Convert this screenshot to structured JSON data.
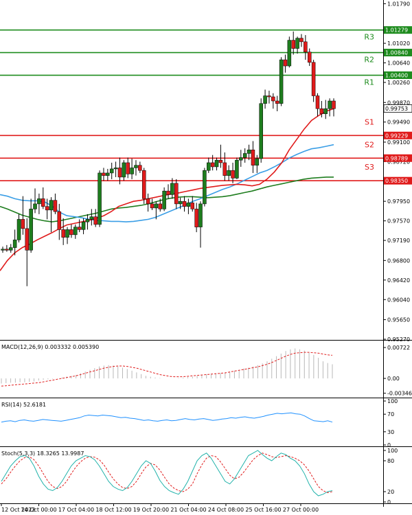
{
  "chart_data": {
    "type": "candlestick",
    "title": "",
    "main_axis": {
      "min": 0.9527,
      "max": 1.01835,
      "ticks": [
        "1.01790",
        "1.01279",
        "1.01020",
        "1.00840",
        "1.00640",
        "1.00400",
        "1.00260",
        "0.99870",
        "0.99753",
        "0.99490",
        "0.99229",
        "0.99100",
        "0.98789",
        "0.98720",
        "0.98350",
        "0.97950",
        "0.97570",
        "0.97190",
        "0.96800",
        "0.96420",
        "0.96040",
        "0.95650",
        "0.95270"
      ]
    },
    "levels": [
      {
        "name": "R3",
        "value": 1.01279,
        "label": "1.01279",
        "color": "#1e8c1e"
      },
      {
        "name": "R2",
        "value": 1.0084,
        "label": "1.00840",
        "color": "#1e8c1e"
      },
      {
        "name": "R1",
        "value": 1.004,
        "label": "1.00400",
        "color": "#1e8c1e"
      },
      {
        "name": "S1",
        "value": 0.99229,
        "label": "0.99229",
        "color": "#e01b1b"
      },
      {
        "name": "S2",
        "value": 0.98789,
        "label": "0.98789",
        "color": "#e01b1b"
      },
      {
        "name": "S3",
        "value": 0.9835,
        "label": "0.98350",
        "color": "#e01b1b"
      }
    ],
    "current_price": {
      "value": 0.99753,
      "label": "0.99753"
    },
    "x_labels": [
      "12 Oct 2022",
      "14 Oct 00:00",
      "17 Oct 04:00",
      "18 Oct 12:00",
      "19 Oct 20:00",
      "21 Oct 04:00",
      "24 Oct 08:00",
      "25 Oct 16:00",
      "27 Oct 00:00"
    ],
    "candles": [
      [
        0.97,
        0.9707,
        0.9695,
        0.9702
      ],
      [
        0.9702,
        0.971,
        0.9697,
        0.97
      ],
      [
        0.97,
        0.9712,
        0.9695,
        0.9705
      ],
      [
        0.9705,
        0.974,
        0.969,
        0.972
      ],
      [
        0.972,
        0.977,
        0.9715,
        0.976
      ],
      [
        0.976,
        0.9805,
        0.973,
        0.9742
      ],
      [
        0.9742,
        0.9762,
        0.963,
        0.97
      ],
      [
        0.97,
        0.98,
        0.9695,
        0.978
      ],
      [
        0.978,
        0.982,
        0.9772,
        0.979
      ],
      [
        0.979,
        0.981,
        0.977,
        0.98
      ],
      [
        0.98,
        0.9822,
        0.978,
        0.9785
      ],
      [
        0.9785,
        0.98,
        0.976,
        0.9778
      ],
      [
        0.9778,
        0.9803,
        0.9735,
        0.9797
      ],
      [
        0.9797,
        0.981,
        0.977,
        0.9775
      ],
      [
        0.9775,
        0.979,
        0.972,
        0.974
      ],
      [
        0.974,
        0.9762,
        0.971,
        0.9725
      ],
      [
        0.9725,
        0.9745,
        0.9712,
        0.974
      ],
      [
        0.974,
        0.975,
        0.9724,
        0.973
      ],
      [
        0.973,
        0.975,
        0.9722,
        0.9745
      ],
      [
        0.9745,
        0.976,
        0.9735,
        0.974
      ],
      [
        0.974,
        0.9762,
        0.9731,
        0.9755
      ],
      [
        0.9755,
        0.977,
        0.974,
        0.976
      ],
      [
        0.976,
        0.978,
        0.9748,
        0.9765
      ],
      [
        0.9765,
        0.978,
        0.9745,
        0.975
      ],
      [
        0.975,
        0.9855,
        0.9745,
        0.985
      ],
      [
        0.985,
        0.986,
        0.9835,
        0.9845
      ],
      [
        0.9845,
        0.9858,
        0.9835,
        0.985
      ],
      [
        0.985,
        0.987,
        0.9838,
        0.9858
      ],
      [
        0.9858,
        0.9872,
        0.9842,
        0.986
      ],
      [
        0.986,
        0.988,
        0.9828,
        0.9842
      ],
      [
        0.9842,
        0.9875,
        0.9835,
        0.987
      ],
      [
        0.987,
        0.988,
        0.984,
        0.9848
      ],
      [
        0.9848,
        0.9878,
        0.9838,
        0.986
      ],
      [
        0.986,
        0.9875,
        0.9845,
        0.9865
      ],
      [
        0.9865,
        0.9872,
        0.985,
        0.9855
      ],
      [
        0.9855,
        0.986,
        0.979,
        0.98
      ],
      [
        0.98,
        0.981,
        0.9775,
        0.979
      ],
      [
        0.979,
        0.98,
        0.9778,
        0.9782
      ],
      [
        0.9782,
        0.9795,
        0.976,
        0.979
      ],
      [
        0.979,
        0.98,
        0.9775,
        0.978
      ],
      [
        0.978,
        0.9822,
        0.9776,
        0.9815
      ],
      [
        0.9815,
        0.9828,
        0.98,
        0.9808
      ],
      [
        0.9808,
        0.984,
        0.98,
        0.983
      ],
      [
        0.983,
        0.9838,
        0.978,
        0.979
      ],
      [
        0.979,
        0.9802,
        0.978,
        0.9795
      ],
      [
        0.9795,
        0.9805,
        0.9775,
        0.9785
      ],
      [
        0.9785,
        0.98,
        0.977,
        0.9792
      ],
      [
        0.9792,
        0.9805,
        0.9775,
        0.978
      ],
      [
        0.978,
        0.9792,
        0.9735,
        0.9745
      ],
      [
        0.9745,
        0.9795,
        0.9705,
        0.979
      ],
      [
        0.979,
        0.986,
        0.9785,
        0.9855
      ],
      [
        0.9855,
        0.988,
        0.985,
        0.987
      ],
      [
        0.987,
        0.9885,
        0.9855,
        0.9862
      ],
      [
        0.9862,
        0.988,
        0.9855,
        0.9875
      ],
      [
        0.9875,
        0.9905,
        0.986,
        0.987
      ],
      [
        0.987,
        0.989,
        0.9835,
        0.9845
      ],
      [
        0.9845,
        0.9865,
        0.9835,
        0.9855
      ],
      [
        0.9855,
        0.987,
        0.983,
        0.984
      ],
      [
        0.984,
        0.988,
        0.9838,
        0.9875
      ],
      [
        0.9875,
        0.9895,
        0.9862,
        0.988
      ],
      [
        0.988,
        0.9898,
        0.987,
        0.9888
      ],
      [
        0.9888,
        0.9905,
        0.9875,
        0.9895
      ],
      [
        0.9895,
        0.9912,
        0.985,
        0.9865
      ],
      [
        0.9865,
        0.9885,
        0.985,
        0.9878
      ],
      [
        0.9878,
        0.9995,
        0.987,
        0.9985
      ],
      [
        0.9985,
        1.0012,
        0.9975,
        1.0
      ],
      [
        1.0,
        1.001,
        0.9985,
        0.9998
      ],
      [
        0.9998,
        1.0005,
        0.9975,
        0.999
      ],
      [
        0.999,
        1.0,
        0.997,
        0.9985
      ],
      [
        0.9985,
        1.0075,
        0.998,
        1.007
      ],
      [
        1.007,
        1.008,
        1.0045,
        1.0058
      ],
      [
        1.0058,
        1.0115,
        1.0055,
        1.0108
      ],
      [
        1.0108,
        1.0125,
        1.008,
        1.0092
      ],
      [
        1.0092,
        1.0115,
        1.0082,
        1.0112
      ],
      [
        1.0112,
        1.012,
        1.0095,
        1.0105
      ],
      [
        1.0105,
        1.0118,
        1.007,
        1.0085
      ],
      [
        1.0085,
        1.0092,
        1.0058,
        1.0065
      ],
      [
        1.0065,
        1.007,
        0.9988,
        1.0
      ],
      [
        1.0,
        1.0005,
        0.996,
        0.9975
      ],
      [
        0.9975,
        0.999,
        0.9958,
        0.9965
      ],
      [
        0.9965,
        0.9992,
        0.9955,
        0.9975
      ],
      [
        0.9975,
        0.9995,
        0.996,
        0.999
      ],
      [
        0.999,
        0.9995,
        0.996,
        0.9975
      ]
    ],
    "ma_red": [
      0.966,
      0.968,
      0.9695,
      0.9705,
      0.9712,
      0.972,
      0.9727,
      0.9734,
      0.9742,
      0.9749,
      0.9752,
      0.9755,
      0.9758,
      0.9762,
      0.9767,
      0.9775,
      0.9785,
      0.979,
      0.9795,
      0.9797,
      0.98,
      0.9803,
      0.9806,
      0.9809,
      0.9811,
      0.9814,
      0.9817,
      0.982,
      0.9822,
      0.9824,
      0.9826,
      0.9827,
      0.9828,
      0.9827,
      0.9825,
      0.9828,
      0.9838,
      0.9852,
      0.987,
      0.9895,
      0.9915,
      0.9935,
      0.9952,
      0.9962,
      0.997,
      0.9975
    ],
    "ma_blue": [
      0.9808,
      0.9805,
      0.98,
      0.9797,
      0.9796,
      0.9796,
      0.9794,
      0.9786,
      0.9774,
      0.9767,
      0.9765,
      0.9763,
      0.976,
      0.9758,
      0.9757,
      0.9756,
      0.9756,
      0.9755,
      0.9756,
      0.9758,
      0.976,
      0.9764,
      0.977,
      0.9776,
      0.9782,
      0.9788,
      0.9795,
      0.98,
      0.9806,
      0.9812,
      0.9818,
      0.9823,
      0.9829,
      0.9836,
      0.9843,
      0.985,
      0.9855,
      0.9862,
      0.987,
      0.9879,
      0.9886,
      0.9892,
      0.9897,
      0.9899,
      0.9902,
      0.9905
    ],
    "ma_green": [
      0.9785,
      0.978,
      0.9774,
      0.9768,
      0.9764,
      0.976,
      0.9757,
      0.9755,
      0.9757,
      0.976,
      0.9763,
      0.9766,
      0.9769,
      0.9772,
      0.9776,
      0.978,
      0.9782,
      0.9783,
      0.9785,
      0.9787,
      0.979,
      0.9794,
      0.9798,
      0.9801,
      0.9803,
      0.9804,
      0.9804,
      0.9803,
      0.9802,
      0.9803,
      0.9804,
      0.9806,
      0.9809,
      0.9812,
      0.9815,
      0.9819,
      0.9823,
      0.9826,
      0.9829,
      0.9832,
      0.9835,
      0.9838,
      0.984,
      0.9841,
      0.9842,
      0.9842
    ],
    "macd": {
      "label": "MACD(12,26,9) 0.003332 0.005390",
      "min": -0.004,
      "max": 0.0082,
      "ticks": [
        "0.00722",
        "0.00",
        "-0.003465"
      ],
      "histogram": [
        -0.0012,
        -0.0011,
        -0.001,
        -0.001,
        -0.0009,
        -0.0009,
        -0.0008,
        -0.0007,
        -0.0005,
        -0.0003,
        -0.0002,
        -0.0001,
        0.0,
        0.0002,
        0.0004,
        0.0006,
        0.0008,
        0.0012,
        0.0016,
        0.002,
        0.0024,
        0.0028,
        0.003,
        0.0031,
        0.003,
        0.0028,
        0.0025,
        0.0022,
        0.0018,
        0.0014,
        0.001,
        0.0006,
        0.0004,
        0.0002,
        0.0001,
        0.0,
        0.0,
        0.0,
        0.0001,
        0.0002,
        0.0003,
        0.0004,
        0.0006,
        0.0008,
        0.001,
        0.0011,
        0.0012,
        0.0013,
        0.0014,
        0.0016,
        0.0018,
        0.002,
        0.0023,
        0.0025,
        0.0028,
        0.0031,
        0.0035,
        0.004,
        0.0046,
        0.0052,
        0.0058,
        0.0064,
        0.0068,
        0.007,
        0.0068,
        0.0065,
        0.006,
        0.0055,
        0.0048,
        0.004,
        0.0036,
        0.0033
      ],
      "signal": [
        -0.0018,
        -0.0017,
        -0.0016,
        -0.0015,
        -0.0014,
        -0.0013,
        -0.0012,
        -0.0011,
        -0.001,
        -0.0008,
        -0.0006,
        -0.0004,
        -0.0002,
        0.0,
        0.0002,
        0.0004,
        0.0006,
        0.0009,
        0.0012,
        0.0015,
        0.0018,
        0.0021,
        0.0024,
        0.0026,
        0.0028,
        0.0029,
        0.0029,
        0.0028,
        0.0026,
        0.0024,
        0.0021,
        0.0018,
        0.0015,
        0.0012,
        0.0009,
        0.0007,
        0.0005,
        0.0004,
        0.0004,
        0.0004,
        0.0005,
        0.0006,
        0.0007,
        0.0008,
        0.0009,
        0.001,
        0.0011,
        0.0012,
        0.0013,
        0.0015,
        0.0017,
        0.0019,
        0.0021,
        0.0023,
        0.0025,
        0.0027,
        0.003,
        0.0033,
        0.0037,
        0.0042,
        0.0047,
        0.0052,
        0.0056,
        0.0059,
        0.006,
        0.0061,
        0.0061,
        0.006,
        0.0059,
        0.0057,
        0.0055,
        0.0054
      ]
    },
    "rsi": {
      "label": "RSI(14) 52.6181",
      "min": 0,
      "max": 100,
      "ticks": [
        "100",
        "70",
        "30",
        "0"
      ],
      "values": [
        52,
        54,
        55,
        53,
        56,
        57,
        55,
        54,
        56,
        58,
        57,
        56,
        55,
        54,
        56,
        58,
        60,
        62,
        66,
        68,
        67,
        66,
        68,
        67,
        66,
        64,
        62,
        63,
        61,
        60,
        58,
        56,
        57,
        55,
        54,
        56,
        57,
        55,
        56,
        58,
        60,
        58,
        57,
        59,
        60,
        58,
        56,
        57,
        59,
        60,
        62,
        61,
        63,
        64,
        62,
        61,
        63,
        65,
        68,
        70,
        72,
        71,
        72,
        73,
        71,
        70,
        66,
        60,
        55,
        54,
        53,
        55,
        52
      ]
    },
    "stoch": {
      "label": "Stoch(5,3,3) 18.3265 13.9987",
      "min": 0,
      "max": 100,
      "ticks": [
        "100",
        "80",
        "20",
        "0"
      ],
      "k": [
        40,
        55,
        70,
        80,
        88,
        90,
        85,
        70,
        50,
        35,
        25,
        22,
        28,
        40,
        55,
        70,
        80,
        85,
        90,
        88,
        82,
        70,
        55,
        40,
        30,
        25,
        22,
        28,
        40,
        55,
        70,
        80,
        75,
        60,
        42,
        30,
        22,
        18,
        15,
        25,
        40,
        60,
        80,
        90,
        95,
        85,
        70,
        55,
        40,
        35,
        45,
        60,
        75,
        90,
        95,
        100,
        92,
        85,
        80,
        88,
        95,
        92,
        85,
        80,
        70,
        55,
        35,
        20,
        12,
        15,
        20,
        22
      ],
      "d": [
        35,
        45,
        58,
        70,
        80,
        86,
        88,
        82,
        70,
        55,
        40,
        30,
        26,
        30,
        40,
        55,
        68,
        78,
        85,
        88,
        87,
        82,
        72,
        58,
        45,
        35,
        28,
        26,
        30,
        40,
        55,
        68,
        75,
        72,
        62,
        48,
        35,
        27,
        22,
        20,
        25,
        35,
        55,
        72,
        85,
        90,
        88,
        78,
        65,
        52,
        45,
        48,
        58,
        70,
        82,
        90,
        95,
        92,
        88,
        86,
        88,
        90,
        88,
        85,
        80,
        72,
        60,
        45,
        30,
        22,
        18,
        20
      ]
    }
  }
}
